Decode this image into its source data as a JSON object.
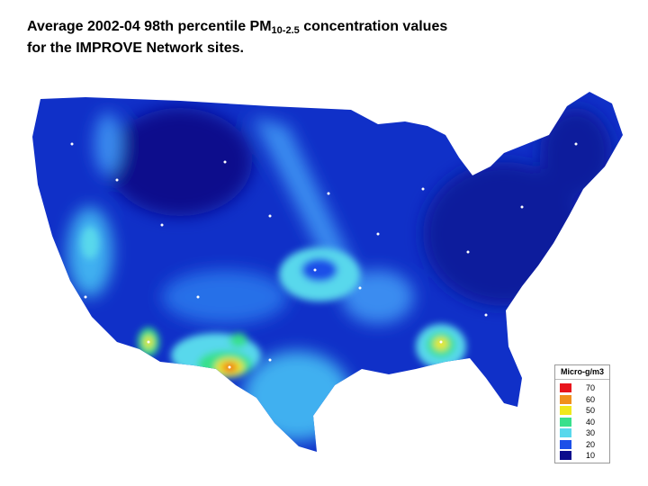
{
  "header": {
    "title_parts": [
      "Average 2002-04 98th percentile PM",
      "10-2.5",
      " concentration values"
    ],
    "title_line2": "for the IMPROVE Network sites."
  },
  "legend": {
    "title": "Micro-g/m3",
    "items": [
      {
        "label": 70,
        "color": "#e8141c"
      },
      {
        "label": 60,
        "color": "#f0901c"
      },
      {
        "label": 50,
        "color": "#f0e81c"
      },
      {
        "label": 40,
        "color": "#38e08c"
      },
      {
        "label": 30,
        "color": "#58d8ec"
      },
      {
        "label": 20,
        "color": "#1c50e8"
      },
      {
        "label": 10,
        "color": "#0c0c8c"
      }
    ]
  }
}
